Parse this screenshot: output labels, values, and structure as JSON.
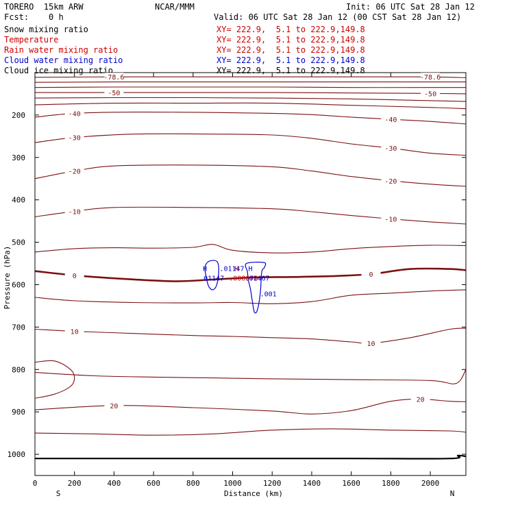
{
  "header": {
    "model": "TORERO  15km ARW",
    "center": "NCAR/MMM",
    "init": "Init: 06 UTC Sat 28 Jan 12",
    "fcst": "Fcst:    0 h",
    "valid": "Valid: 06 UTC Sat 28 Jan 12 (00 CST Sat 28 Jan 12)"
  },
  "legend": [
    {
      "label": "Snow mixing ratio",
      "color": "#000000",
      "xy": "XY= 222.9,  5.1 to 222.9,149.8"
    },
    {
      "label": "Temperature",
      "color": "#cc0000",
      "xy": "XY= 222.9,  5.1 to 222.9,149.8"
    },
    {
      "label": "Rain water mixing ratio",
      "color": "#cc0000",
      "xy": "XY= 222.9,  5.1 to 222.9,149.8"
    },
    {
      "label": "Cloud water mixing ratio",
      "color": "#0000cc",
      "xy": "XY= 222.9,  5.1 to 222.9,149.8"
    },
    {
      "label": "Cloud ice mixing ratio",
      "color": "#000000",
      "xy": "XY= 222.9,  5.1 to 222.9,149.8"
    }
  ],
  "colors": {
    "temperature": "#7a1010",
    "freezing": "#7a1010",
    "cloud_water": "#0000cc",
    "rain": "#cc0000",
    "terrain": "#000000",
    "axes": "#000000"
  },
  "chart_data": {
    "type": "contour",
    "xlabel": "Distance (km)",
    "ylabel": "Pressure (hPa)",
    "xlim": [
      0,
      2180
    ],
    "ylim": [
      1050,
      100
    ],
    "xticks": [
      0,
      200,
      400,
      600,
      800,
      1000,
      1200,
      1400,
      1600,
      1800,
      2000
    ],
    "yticks": [
      200,
      300,
      400,
      500,
      600,
      700,
      800,
      900,
      1000
    ],
    "x_end_labels": {
      "left": "S",
      "right": "N"
    },
    "temperature_isotherms": [
      {
        "level": "-78.6",
        "points": [
          [
            0,
            111
          ],
          [
            400,
            110
          ],
          [
            800,
            110
          ],
          [
            1200,
            110
          ],
          [
            1600,
            110
          ],
          [
            2000,
            110
          ],
          [
            2180,
            112
          ]
        ]
      },
      {
        "level": "",
        "points": [
          [
            0,
            123
          ],
          [
            400,
            122
          ],
          [
            800,
            122
          ],
          [
            1200,
            122
          ],
          [
            1600,
            122
          ],
          [
            2000,
            122
          ],
          [
            2180,
            122
          ]
        ]
      },
      {
        "level": "",
        "points": [
          [
            0,
            135
          ],
          [
            400,
            134
          ],
          [
            800,
            134
          ],
          [
            1200,
            134
          ],
          [
            1600,
            135
          ],
          [
            2000,
            135
          ],
          [
            2180,
            135
          ]
        ]
      },
      {
        "level": "-50",
        "points": [
          [
            0,
            147
          ],
          [
            400,
            147
          ],
          [
            800,
            147
          ],
          [
            1200,
            147
          ],
          [
            1600,
            148
          ],
          [
            2000,
            149
          ],
          [
            2180,
            150
          ]
        ]
      },
      {
        "level": "",
        "points": [
          [
            0,
            160
          ],
          [
            400,
            159
          ],
          [
            800,
            159
          ],
          [
            1200,
            160
          ],
          [
            1600,
            162
          ],
          [
            2000,
            166
          ],
          [
            2180,
            168
          ]
        ]
      },
      {
        "level": "",
        "points": [
          [
            0,
            176
          ],
          [
            400,
            172
          ],
          [
            800,
            172
          ],
          [
            1200,
            172
          ],
          [
            1600,
            177
          ],
          [
            2000,
            182
          ],
          [
            2180,
            185
          ]
        ]
      },
      {
        "level": "-40",
        "points": [
          [
            0,
            205
          ],
          [
            200,
            196
          ],
          [
            500,
            193
          ],
          [
            900,
            194
          ],
          [
            1200,
            196
          ],
          [
            1400,
            199
          ],
          [
            1600,
            205
          ],
          [
            1800,
            210
          ],
          [
            2000,
            215
          ],
          [
            2180,
            221
          ]
        ]
      },
      {
        "level": "-30",
        "points": [
          [
            0,
            265
          ],
          [
            200,
            253
          ],
          [
            500,
            245
          ],
          [
            900,
            245
          ],
          [
            1200,
            247
          ],
          [
            1400,
            255
          ],
          [
            1600,
            268
          ],
          [
            1800,
            278
          ],
          [
            2000,
            290
          ],
          [
            2180,
            295
          ]
        ]
      },
      {
        "level": "-20",
        "points": [
          [
            0,
            350
          ],
          [
            200,
            332
          ],
          [
            400,
            320
          ],
          [
            800,
            318
          ],
          [
            1200,
            322
          ],
          [
            1400,
            332
          ],
          [
            1600,
            345
          ],
          [
            1800,
            355
          ],
          [
            2000,
            363
          ],
          [
            2180,
            368
          ]
        ]
      },
      {
        "level": "-10",
        "points": [
          [
            0,
            440
          ],
          [
            200,
            427
          ],
          [
            400,
            418
          ],
          [
            800,
            418
          ],
          [
            1200,
            421
          ],
          [
            1400,
            428
          ],
          [
            1600,
            437
          ],
          [
            1800,
            445
          ],
          [
            2000,
            452
          ],
          [
            2180,
            457
          ]
        ]
      },
      {
        "level": "",
        "points": [
          [
            0,
            523
          ],
          [
            200,
            515
          ],
          [
            400,
            513
          ],
          [
            600,
            514
          ],
          [
            800,
            512
          ],
          [
            900,
            505
          ],
          [
            1000,
            519
          ],
          [
            1200,
            525
          ],
          [
            1400,
            523
          ],
          [
            1600,
            515
          ],
          [
            1800,
            510
          ],
          [
            2000,
            507
          ],
          [
            2180,
            508
          ]
        ]
      },
      {
        "level": "0",
        "points": [
          [
            0,
            568
          ],
          [
            200,
            578
          ],
          [
            400,
            585
          ],
          [
            700,
            592
          ],
          [
            900,
            588
          ],
          [
            1100,
            583
          ],
          [
            1300,
            582
          ],
          [
            1500,
            580
          ],
          [
            1700,
            575
          ],
          [
            1900,
            563
          ],
          [
            2100,
            563
          ],
          [
            2180,
            566
          ]
        ]
      },
      {
        "level": "",
        "points": [
          [
            0,
            630
          ],
          [
            200,
            638
          ],
          [
            500,
            642
          ],
          [
            800,
            643
          ],
          [
            1000,
            642
          ],
          [
            1200,
            645
          ],
          [
            1400,
            640
          ],
          [
            1600,
            625
          ],
          [
            1800,
            620
          ],
          [
            2000,
            615
          ],
          [
            2180,
            612
          ]
        ]
      },
      {
        "level": "10",
        "points": [
          [
            0,
            705
          ],
          [
            200,
            710
          ],
          [
            500,
            715
          ],
          [
            800,
            720
          ],
          [
            1000,
            722
          ],
          [
            1200,
            725
          ],
          [
            1400,
            728
          ],
          [
            1600,
            735
          ],
          [
            1700,
            738
          ],
          [
            1900,
            725
          ],
          [
            2100,
            705
          ],
          [
            2180,
            703
          ]
        ]
      },
      {
        "level": "",
        "points": [
          [
            0,
            783
          ],
          [
            100,
            780
          ],
          [
            180,
            800
          ],
          [
            200,
            820
          ],
          [
            180,
            840
          ],
          [
            100,
            858
          ],
          [
            0,
            868
          ]
        ]
      },
      {
        "level": "",
        "points": [
          [
            0,
            807
          ],
          [
            300,
            815
          ],
          [
            600,
            818
          ],
          [
            900,
            820
          ],
          [
            1200,
            822
          ],
          [
            1600,
            824
          ],
          [
            2000,
            826
          ],
          [
            2130,
            833
          ],
          [
            2180,
            800
          ]
        ]
      },
      {
        "level": "20",
        "points": [
          [
            0,
            895
          ],
          [
            400,
            885
          ],
          [
            800,
            890
          ],
          [
            1200,
            898
          ],
          [
            1400,
            905
          ],
          [
            1600,
            897
          ],
          [
            1800,
            875
          ],
          [
            1950,
            870
          ],
          [
            2100,
            875
          ],
          [
            2180,
            876
          ]
        ]
      },
      {
        "level": "",
        "points": [
          [
            0,
            950
          ],
          [
            300,
            952
          ],
          [
            600,
            955
          ],
          [
            900,
            952
          ],
          [
            1200,
            943
          ],
          [
            1500,
            940
          ],
          [
            1800,
            943
          ],
          [
            2100,
            945
          ],
          [
            2180,
            948
          ]
        ]
      }
    ],
    "terrain_surface_hpa": [
      [
        0,
        1010
      ],
      [
        800,
        1010
      ],
      [
        1600,
        1010
      ],
      [
        2100,
        1010
      ],
      [
        2140,
        1003
      ],
      [
        2180,
        1005
      ]
    ],
    "cloud_water_contours": [
      {
        "level": ".01147",
        "points": [
          [
            860,
            560
          ],
          [
            880,
            545
          ],
          [
            920,
            545
          ],
          [
            930,
            565
          ],
          [
            920,
            600
          ],
          [
            900,
            612
          ],
          [
            880,
            605
          ],
          [
            870,
            590
          ]
        ]
      },
      {
        "level": ".001",
        "points": [
          [
            1070,
            550
          ],
          [
            1160,
            548
          ],
          [
            1160,
            560
          ],
          [
            1150,
            565
          ],
          [
            1145,
            580
          ],
          [
            1140,
            620
          ],
          [
            1125,
            660
          ],
          [
            1110,
            665
          ],
          [
            1100,
            640
          ],
          [
            1090,
            610
          ],
          [
            1080,
            590
          ],
          [
            1075,
            570
          ]
        ]
      }
    ],
    "extrema": [
      {
        "type": "H",
        "value": ".01147",
        "series": "Cloud water mixing ratio",
        "x": 860,
        "p": 568
      },
      {
        "type": "H",
        "value": ".000078",
        "series": "Rain water mixing ratio",
        "x": 1020,
        "p": 568
      },
      {
        "type": "H",
        "value": ".01467",
        "series": "Cloud water mixing ratio",
        "x": 1090,
        "p": 568
      }
    ]
  }
}
